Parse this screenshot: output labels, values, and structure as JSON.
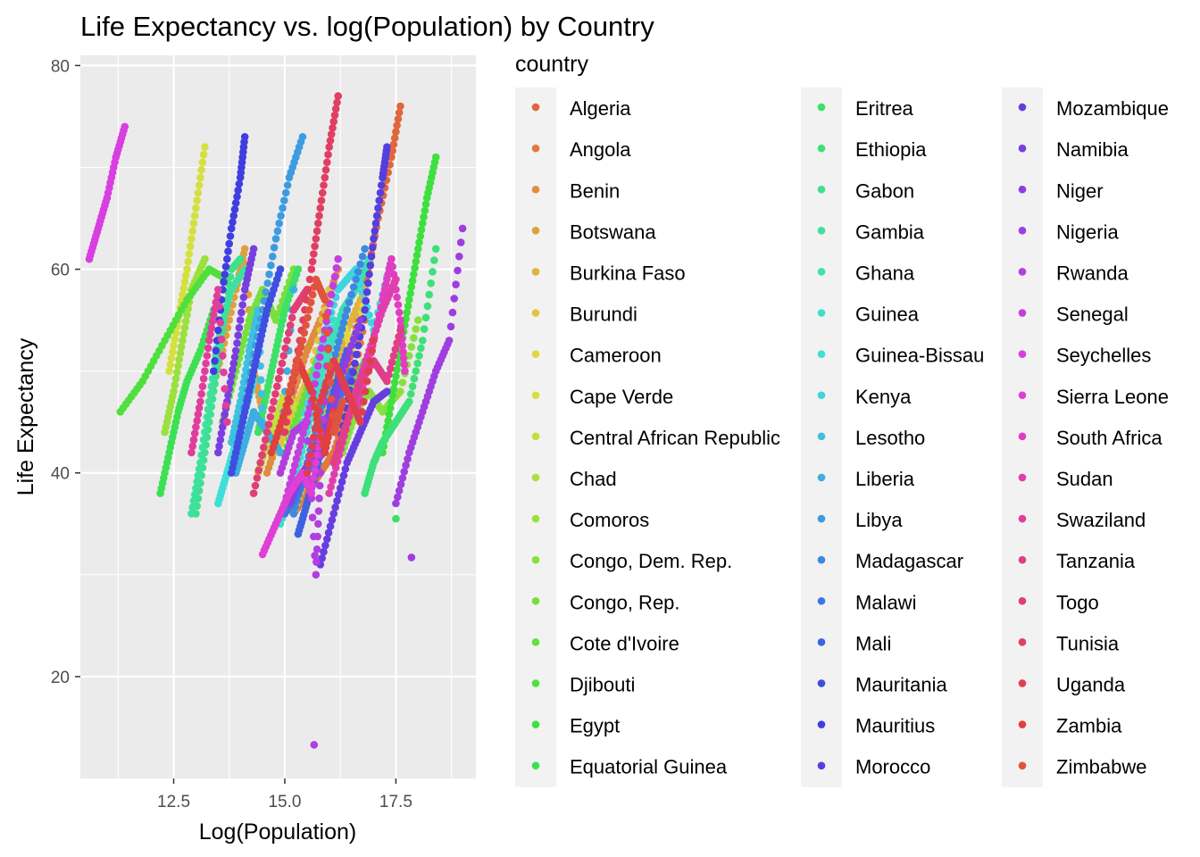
{
  "chart_data": {
    "type": "scatter",
    "title": "Life Expectancy vs. log(Population) by Country",
    "xlabel": "Log(Population)",
    "ylabel": "Life Expectancy",
    "xlim": [
      10.4,
      19.3
    ],
    "ylim": [
      10.0,
      81.0
    ],
    "x_ticks": [
      12.5,
      15.0,
      17.5
    ],
    "y_ticks": [
      20,
      40,
      60,
      80
    ],
    "x_tick_labels": [
      "12.5",
      "15.0",
      "17.5"
    ],
    "y_tick_labels": [
      "20",
      "40",
      "60",
      "80"
    ],
    "grid": true,
    "legend_title": "country",
    "legend_position": "right",
    "series": [
      {
        "name": "Algeria",
        "x": [
          16.2,
          16.5,
          16.8,
          17.1,
          17.4,
          17.6
        ],
        "y": [
          47,
          52,
          58,
          65,
          71,
          76
        ]
      },
      {
        "name": "Angola",
        "x": [
          15.2,
          15.5,
          15.8,
          16.1,
          16.4,
          16.8
        ],
        "y": [
          36,
          38,
          40,
          42,
          46,
          55
        ]
      },
      {
        "name": "Benin",
        "x": [
          14.6,
          14.9,
          15.2,
          15.5,
          15.8,
          16.2
        ],
        "y": [
          40,
          44,
          48,
          52,
          55,
          60
        ]
      },
      {
        "name": "Botswana",
        "x": [
          13.3,
          13.6,
          13.9,
          14.1,
          14.3,
          14.5
        ],
        "y": [
          47,
          52,
          58,
          62,
          50,
          46
        ]
      },
      {
        "name": "Burkina Faso",
        "x": [
          15.2,
          15.5,
          15.8,
          16.1,
          16.4,
          16.8
        ],
        "y": [
          36,
          40,
          45,
          50,
          54,
          58
        ]
      },
      {
        "name": "Burundi",
        "x": [
          14.8,
          15.0,
          15.2,
          15.4,
          15.6,
          16.0
        ],
        "y": [
          42,
          44,
          46,
          48,
          50,
          58
        ]
      },
      {
        "name": "Cameroon",
        "x": [
          15.4,
          15.7,
          16.0,
          16.3,
          16.5,
          16.8
        ],
        "y": [
          43,
          48,
          53,
          55,
          52,
          57
        ]
      },
      {
        "name": "Cape Verde",
        "x": [
          12.4,
          12.6,
          12.8,
          13.0,
          13.2
        ],
        "y": [
          50,
          55,
          60,
          66,
          72
        ]
      },
      {
        "name": "Central African Republic",
        "x": [
          14.4,
          14.7,
          15.0,
          15.3,
          15.5
        ],
        "y": [
          40,
          44,
          48,
          46,
          47
        ]
      },
      {
        "name": "Chad",
        "x": [
          14.9,
          15.2,
          15.5,
          15.8,
          16.2
        ],
        "y": [
          40,
          44,
          48,
          51,
          50
        ]
      },
      {
        "name": "Comoros",
        "x": [
          12.3,
          12.5,
          12.7,
          12.9,
          13.2
        ],
        "y": [
          44,
          48,
          53,
          58,
          61
        ]
      },
      {
        "name": "Congo, Dem. Rep.",
        "x": [
          16.3,
          16.6,
          16.9,
          17.2,
          17.6,
          18.0
        ],
        "y": [
          42,
          46,
          48,
          46,
          48,
          55
        ]
      },
      {
        "name": "Congo, Rep.",
        "x": [
          13.6,
          13.9,
          14.2,
          14.5,
          14.8,
          15.2
        ],
        "y": [
          45,
          50,
          55,
          58,
          55,
          60
        ]
      },
      {
        "name": "Cote d'Ivoire",
        "x": [
          15.0,
          15.4,
          15.8,
          16.2,
          16.5,
          16.8
        ],
        "y": [
          42,
          47,
          52,
          50,
          48,
          51
        ]
      },
      {
        "name": "Djibouti",
        "x": [
          11.3,
          11.8,
          12.3,
          12.8,
          13.3,
          13.7
        ],
        "y": [
          46,
          49,
          53,
          57,
          60,
          59
        ]
      },
      {
        "name": "Egypt",
        "x": [
          17.2,
          17.4,
          17.6,
          17.8,
          18.0,
          18.2,
          18.4
        ],
        "y": [
          42,
          47,
          52,
          57,
          62,
          67,
          71
        ]
      },
      {
        "name": "Equatorial Guinea",
        "x": [
          12.2,
          12.4,
          12.6,
          12.8,
          13.1,
          13.4
        ],
        "y": [
          38,
          42,
          46,
          49,
          52,
          56
        ]
      },
      {
        "name": "Eritrea",
        "x": [
          14.4,
          14.6,
          14.8,
          15.0,
          15.3
        ],
        "y": [
          44,
          48,
          52,
          56,
          60
        ]
      },
      {
        "name": "Ethiopia",
        "x": [
          16.8,
          17.0,
          17.2,
          17.5,
          17.8,
          18.1,
          18.4
        ],
        "y": [
          38,
          41,
          43,
          45,
          47,
          53,
          62
        ]
      },
      {
        "name": "Gabon",
        "x": [
          13.0,
          13.2,
          13.4,
          13.6,
          13.8,
          14.0
        ],
        "y": [
          36,
          42,
          48,
          54,
          60,
          61
        ]
      },
      {
        "name": "Gambia",
        "x": [
          12.9,
          13.1,
          13.3,
          13.5,
          13.8,
          14.1
        ],
        "y": [
          36,
          41,
          47,
          53,
          58,
          60
        ]
      },
      {
        "name": "Ghana",
        "x": [
          15.4,
          15.7,
          16.0,
          16.3,
          16.6,
          16.9
        ],
        "y": [
          44,
          48,
          52,
          56,
          58,
          61
        ]
      },
      {
        "name": "Guinea",
        "x": [
          14.9,
          15.2,
          15.5,
          15.8,
          16.1
        ],
        "y": [
          35,
          39,
          44,
          49,
          55
        ]
      },
      {
        "name": "Guinea-Bissau",
        "x": [
          13.5,
          13.7,
          13.9,
          14.1,
          14.3
        ],
        "y": [
          37,
          40,
          43,
          46,
          49
        ]
      },
      {
        "name": "Kenya",
        "x": [
          15.4,
          15.8,
          16.2,
          16.6,
          17.0,
          17.4
        ],
        "y": [
          45,
          52,
          58,
          60,
          54,
          61
        ]
      },
      {
        "name": "Lesotho",
        "x": [
          13.8,
          14.0,
          14.2,
          14.4,
          14.5
        ],
        "y": [
          43,
          47,
          52,
          56,
          45
        ]
      },
      {
        "name": "Liberia",
        "x": [
          13.9,
          14.1,
          14.3,
          14.6,
          14.9,
          15.2
        ],
        "y": [
          40,
          43,
          46,
          44,
          42,
          58
        ]
      },
      {
        "name": "Libya",
        "x": [
          13.9,
          14.2,
          14.5,
          14.8,
          15.1,
          15.4
        ],
        "y": [
          42,
          49,
          56,
          63,
          69,
          73
        ]
      },
      {
        "name": "Madagascar",
        "x": [
          15.2,
          15.5,
          15.8,
          16.1,
          16.4,
          16.8
        ],
        "y": [
          36,
          41,
          46,
          51,
          56,
          62
        ]
      },
      {
        "name": "Malawi",
        "x": [
          15.0,
          15.3,
          15.6,
          15.9,
          16.2,
          16.5
        ],
        "y": [
          36,
          38,
          41,
          45,
          47,
          50
        ]
      },
      {
        "name": "Mali",
        "x": [
          15.3,
          15.5,
          15.7,
          15.9,
          16.1,
          16.4
        ],
        "y": [
          34,
          37,
          40,
          44,
          48,
          52
        ]
      },
      {
        "name": "Mauritania",
        "x": [
          13.8,
          14.0,
          14.2,
          14.4,
          14.6,
          14.9
        ],
        "y": [
          40,
          44,
          48,
          52,
          56,
          60
        ]
      },
      {
        "name": "Mauritius",
        "x": [
          13.4,
          13.6,
          13.8,
          14.0,
          14.1
        ],
        "y": [
          50,
          58,
          64,
          69,
          73
        ]
      },
      {
        "name": "Morocco",
        "x": [
          16.2,
          16.5,
          16.8,
          17.0,
          17.2,
          17.3
        ],
        "y": [
          42,
          49,
          56,
          63,
          69,
          72
        ]
      },
      {
        "name": "Mozambique",
        "x": [
          15.8,
          16.1,
          16.4,
          16.7,
          17.0,
          17.3
        ],
        "y": [
          31,
          36,
          41,
          44,
          47,
          48
        ]
      },
      {
        "name": "Namibia",
        "x": [
          13.5,
          13.7,
          13.9,
          14.1,
          14.3
        ],
        "y": [
          42,
          47,
          52,
          58,
          62
        ]
      },
      {
        "name": "Niger",
        "x": [
          15.1,
          15.4,
          15.7,
          16.0,
          16.3,
          16.7
        ],
        "y": [
          37,
          40,
          42,
          45,
          50,
          55
        ]
      },
      {
        "name": "Nigeria",
        "x": [
          17.5,
          17.8,
          18.1,
          18.4,
          18.7,
          19.0
        ],
        "y": [
          37,
          42,
          46,
          50,
          53,
          64
        ]
      },
      {
        "name": "Rwanda",
        "x": [
          14.9,
          15.2,
          15.5,
          15.7,
          15.8,
          16.0
        ],
        "y": [
          40,
          44,
          45,
          30,
          40,
          54
        ]
      },
      {
        "name": "Senegal",
        "x": [
          15.0,
          15.3,
          15.6,
          15.9,
          16.2
        ],
        "y": [
          37,
          42,
          47,
          54,
          61
        ]
      },
      {
        "name": "Seychelles",
        "x": [
          10.6,
          10.8,
          11.0,
          11.2,
          11.4
        ],
        "y": [
          61,
          64,
          67,
          71,
          74
        ]
      },
      {
        "name": "Sierra Leone",
        "x": [
          14.5,
          14.8,
          15.1,
          15.4,
          15.6,
          15.8
        ],
        "y": [
          32,
          35,
          38,
          40,
          38,
          44
        ]
      },
      {
        "name": "South Africa",
        "x": [
          16.6,
          16.9,
          17.2,
          17.4,
          17.6,
          17.7
        ],
        "y": [
          46,
          51,
          57,
          61,
          55,
          50
        ]
      },
      {
        "name": "Sudan",
        "x": [
          16.0,
          16.3,
          16.6,
          16.9,
          17.2,
          17.5
        ],
        "y": [
          38,
          43,
          48,
          52,
          56,
          59
        ]
      },
      {
        "name": "Swaziland",
        "x": [
          12.9,
          13.1,
          13.3,
          13.5,
          13.7
        ],
        "y": [
          42,
          47,
          53,
          58,
          45
        ]
      },
      {
        "name": "Tanzania",
        "x": [
          16.1,
          16.4,
          16.7,
          17.0,
          17.3,
          17.6
        ],
        "y": [
          41,
          45,
          49,
          51,
          49,
          54
        ]
      },
      {
        "name": "Togo",
        "x": [
          14.3,
          14.6,
          14.9,
          15.2,
          15.5
        ],
        "y": [
          38,
          44,
          50,
          56,
          58
        ]
      },
      {
        "name": "Tunisia",
        "x": [
          15.0,
          15.3,
          15.6,
          15.8,
          16.0,
          16.2
        ],
        "y": [
          44,
          52,
          60,
          66,
          72,
          77
        ]
      },
      {
        "name": "Uganda",
        "x": [
          15.5,
          15.8,
          16.1,
          16.4,
          16.7,
          17.0
        ],
        "y": [
          40,
          47,
          51,
          48,
          45,
          53
        ]
      },
      {
        "name": "Zambia",
        "x": [
          14.7,
          15.0,
          15.3,
          15.6,
          15.9,
          16.1
        ],
        "y": [
          42,
          46,
          51,
          48,
          42,
          46
        ]
      },
      {
        "name": "Zimbabwe",
        "x": [
          15.1,
          15.4,
          15.7,
          15.9,
          16.1,
          16.3
        ],
        "y": [
          48,
          53,
          59,
          57,
          44,
          47
        ]
      }
    ],
    "outliers": [
      {
        "name": "Rwanda",
        "x": 15.66,
        "y": 13.3
      },
      {
        "name": "Nigeria",
        "x": 17.85,
        "y": 31.7
      },
      {
        "name": "Eritrea",
        "x": 17.5,
        "y": 35.5
      }
    ]
  }
}
